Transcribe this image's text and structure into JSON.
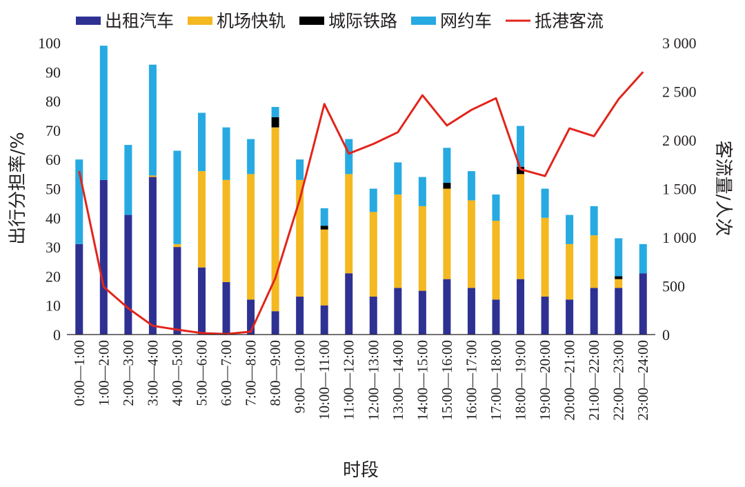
{
  "chart_data": {
    "type": "bar",
    "stacked": true,
    "categories": [
      "0:00—1:00",
      "1:00—2:00",
      "2:00—3:00",
      "3:00—4:00",
      "4:00—5:00",
      "5:00—6:00",
      "6:00—7:00",
      "7:00—8:00",
      "8:00—9:00",
      "9:00—10:00",
      "10:00—11:00",
      "11:00—12:00",
      "12:00—13:00",
      "13:00—14:00",
      "14:00—15:00",
      "15:00—16:00",
      "16:00—17:00",
      "17:00—18:00",
      "18:00—19:00",
      "19:00—20:00",
      "20:00—21:00",
      "21:00—22:00",
      "22:00—23:00",
      "23:00—24:00"
    ],
    "series": [
      {
        "name": "出租汽车",
        "color": "#2e3192",
        "axis": "left",
        "values": [
          31,
          53,
          41,
          54,
          30,
          23,
          18,
          12,
          8,
          13,
          10,
          21,
          13,
          16,
          15,
          19,
          16,
          12,
          19,
          13,
          12,
          16,
          16,
          21
        ]
      },
      {
        "name": "机场快轨",
        "color": "#f4b820",
        "axis": "left",
        "values": [
          0,
          0,
          0,
          0.5,
          1,
          33,
          35,
          43,
          63,
          40,
          26,
          34,
          29,
          32,
          29,
          31,
          30,
          27,
          36,
          27,
          19,
          18,
          3,
          0
        ]
      },
      {
        "name": "城际铁路",
        "color": "#000000",
        "axis": "left",
        "values": [
          0,
          0,
          0,
          0,
          0,
          0,
          0,
          0,
          3.5,
          0,
          1.3,
          0,
          0,
          0,
          0,
          2,
          0,
          0,
          2.5,
          0,
          0,
          0,
          1,
          0
        ]
      },
      {
        "name": "网约车",
        "color": "#27aae1",
        "axis": "left",
        "values": [
          29,
          46,
          24,
          38,
          32,
          20,
          18,
          12,
          3.5,
          7,
          6,
          12,
          8,
          11,
          10,
          12,
          10,
          9,
          14,
          10,
          10,
          10,
          13,
          10
        ]
      },
      {
        "name": "抵港客流",
        "color": "#e1251b",
        "type": "line",
        "axis": "right",
        "values": [
          1680,
          490,
          270,
          90,
          50,
          15,
          5,
          30,
          580,
          1390,
          2370,
          1860,
          1960,
          2080,
          2460,
          2150,
          2310,
          2430,
          1700,
          1630,
          2120,
          2040,
          2420,
          2700
        ]
      }
    ],
    "xlabel": "时段",
    "ylabel": "出行分担率/%",
    "y2label": "客流量/人次",
    "ylim": [
      0,
      100
    ],
    "yticks": [
      "0",
      "10",
      "20",
      "30",
      "40",
      "50",
      "60",
      "70",
      "80",
      "90",
      "100"
    ],
    "y2lim": [
      0,
      3000
    ],
    "y2ticks": [
      "0",
      "500",
      "1 000",
      "1 500",
      "2 000",
      "2 500",
      "3 000"
    ],
    "grid": false,
    "legend": "top"
  }
}
